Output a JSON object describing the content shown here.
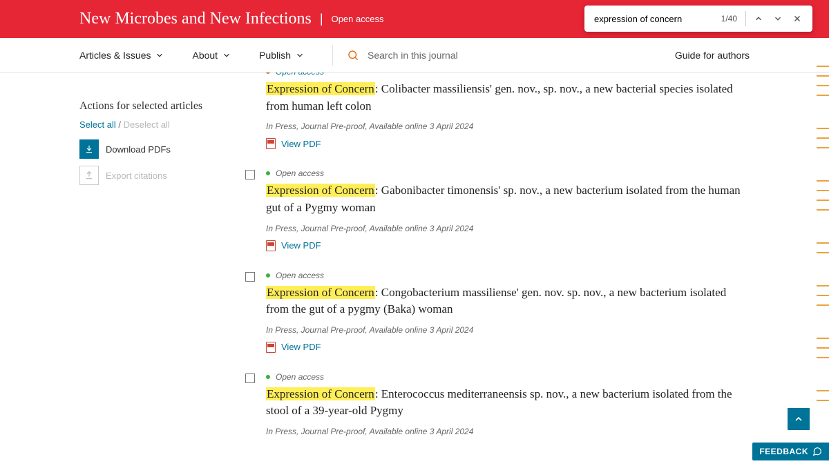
{
  "header": {
    "journal_title": "New Microbes and New Infections",
    "open_access": "Open access"
  },
  "find": {
    "query": "expression of concern",
    "count": "1/40"
  },
  "nav": {
    "articles_issues": "Articles & Issues",
    "about": "About",
    "publish": "Publish",
    "search_placeholder": "Search in this journal",
    "guide": "Guide for authors"
  },
  "sidebar": {
    "heading": "Actions for selected articles",
    "select_all": "Select all",
    "deselect_all": "Deselect all",
    "download": "Download PDFs",
    "export": "Export citations"
  },
  "labels": {
    "open_access": "Open access",
    "view_pdf": "View PDF",
    "highlight": "Expression of Concern",
    "truncated_top_oa": "Open access"
  },
  "articles": [
    {
      "title_rest": ": Colibacter massiliensis' gen. nov., sp. nov., a new bacterial species isolated from human left colon",
      "meta": "In Press, Journal Pre-proof, Available online 3 April 2024"
    },
    {
      "title_rest": ": Gabonibacter timonensis' sp. nov., a new bacterium isolated from the human gut of a Pygmy woman",
      "meta": "In Press, Journal Pre-proof, Available online 3 April 2024"
    },
    {
      "title_rest": ": Congobacterium massiliense' gen. nov. sp. nov., a new bacterium isolated from the gut of a pygmy (Baka) woman",
      "meta": "In Press, Journal Pre-proof, Available online 3 April 2024"
    },
    {
      "title_rest": ": Enterococcus mediterraneensis sp. nov., a new bacterium isolated from the stool of a 39-year-old Pygmy",
      "meta": "In Press, Journal Pre-proof, Available online 3 April 2024"
    }
  ],
  "feedback": {
    "label": "FEEDBACK"
  },
  "stripe_positions": [
    40,
    54,
    68,
    82,
    130,
    144,
    158,
    206,
    220,
    234,
    248,
    296,
    310,
    358,
    372,
    386,
    434,
    448,
    462,
    510,
    524
  ]
}
